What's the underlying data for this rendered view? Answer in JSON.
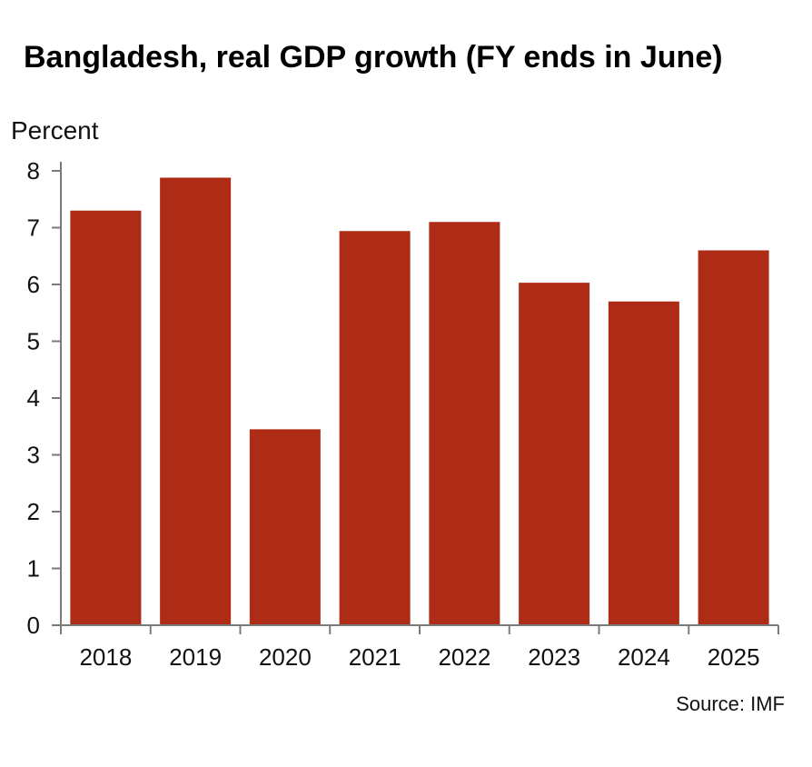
{
  "chart_data": {
    "type": "bar",
    "title": "Bangladesh, real GDP growth (FY ends in June)",
    "ylabel": "Percent",
    "xlabel": "",
    "categories": [
      "2018",
      "2019",
      "2020",
      "2021",
      "2022",
      "2023",
      "2024",
      "2025"
    ],
    "values": [
      7.3,
      7.88,
      3.45,
      6.94,
      7.1,
      6.03,
      5.7,
      6.6
    ],
    "ylim": [
      0,
      8
    ],
    "yticks": [
      "0",
      "1",
      "2",
      "3",
      "4",
      "5",
      "6",
      "7",
      "8"
    ],
    "grid": false,
    "legend": "none",
    "bar_color": "#ae2b16",
    "axis_color": "#7a7a7a",
    "source": "Source: IMF"
  }
}
